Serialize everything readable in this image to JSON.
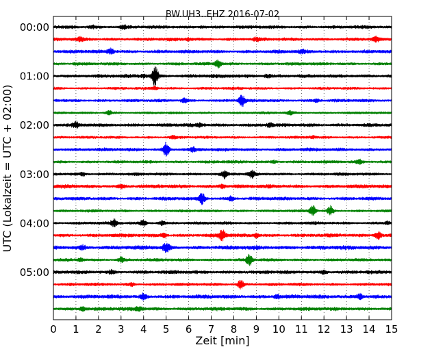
{
  "chart_data": {
    "type": "line",
    "title": "BW.UH3..EHZ 2016-07-02",
    "xlabel": "Zeit  [min]",
    "ylabel": "UTC (Lokalzeit = UTC + 02:00)",
    "xlim": [
      0,
      15
    ],
    "x_ticks": [
      "0",
      "1",
      "2",
      "3",
      "4",
      "5",
      "6",
      "7",
      "8",
      "9",
      "10",
      "11",
      "12",
      "13",
      "14",
      "15"
    ],
    "y_ticks": [
      {
        "label": "00:00",
        "row": 0
      },
      {
        "label": "01:00",
        "row": 4
      },
      {
        "label": "02:00",
        "row": 8
      },
      {
        "label": "03:00",
        "row": 12
      },
      {
        "label": "04:00",
        "row": 16
      },
      {
        "label": "05:00",
        "row": 20
      }
    ],
    "row_minutes": 15,
    "grid": "vertical dotted every minute",
    "color_cycle": [
      "#000000",
      "#ff0000",
      "#0000ff",
      "#008000"
    ],
    "traces": [
      {
        "start": "00:00",
        "color": "#000000",
        "amp": 0.28,
        "events": [
          [
            1.7,
            0.3
          ],
          [
            3.1,
            0.35
          ],
          [
            6.6,
            0.3
          ]
        ]
      },
      {
        "start": "00:15",
        "color": "#ff0000",
        "amp": 0.28,
        "events": [
          [
            1.2,
            0.3
          ],
          [
            6.0,
            0.25
          ],
          [
            9.0,
            0.25
          ],
          [
            14.3,
            0.3
          ]
        ]
      },
      {
        "start": "00:30",
        "color": "#0000ff",
        "amp": 0.3,
        "events": [
          [
            2.55,
            0.6
          ],
          [
            11.0,
            0.25
          ]
        ]
      },
      {
        "start": "00:45",
        "color": "#008000",
        "amp": 0.25,
        "events": [
          [
            7.3,
            0.9
          ],
          [
            1.0,
            0.25
          ]
        ]
      },
      {
        "start": "01:00",
        "color": "#000000",
        "amp": 0.3,
        "events": [
          [
            4.5,
            2.0
          ],
          [
            9.5,
            0.5
          ],
          [
            4.0,
            0.35
          ]
        ]
      },
      {
        "start": "01:15",
        "color": "#ff0000",
        "amp": 0.22,
        "events": [
          [
            4.5,
            0.3
          ]
        ]
      },
      {
        "start": "01:30",
        "color": "#0000ff",
        "amp": 0.25,
        "events": [
          [
            8.35,
            1.0
          ],
          [
            5.8,
            0.45
          ],
          [
            11.7,
            0.35
          ]
        ]
      },
      {
        "start": "01:45",
        "color": "#008000",
        "amp": 0.2,
        "events": [
          [
            2.45,
            0.5
          ],
          [
            10.5,
            0.3
          ]
        ]
      },
      {
        "start": "02:00",
        "color": "#000000",
        "amp": 0.3,
        "events": [
          [
            1.0,
            0.4
          ],
          [
            9.6,
            0.35
          ],
          [
            6.5,
            0.25
          ]
        ]
      },
      {
        "start": "02:15",
        "color": "#ff0000",
        "amp": 0.22,
        "events": [
          [
            5.3,
            0.3
          ],
          [
            11.5,
            0.25
          ]
        ]
      },
      {
        "start": "02:30",
        "color": "#0000ff",
        "amp": 0.28,
        "events": [
          [
            5.0,
            1.4
          ],
          [
            6.2,
            0.3
          ]
        ]
      },
      {
        "start": "02:45",
        "color": "#008000",
        "amp": 0.25,
        "events": [
          [
            13.6,
            0.35
          ],
          [
            9.8,
            0.25
          ]
        ]
      },
      {
        "start": "03:00",
        "color": "#000000",
        "amp": 0.25,
        "events": [
          [
            7.6,
            0.7
          ],
          [
            8.8,
            0.5
          ],
          [
            1.3,
            0.35
          ]
        ]
      },
      {
        "start": "03:15",
        "color": "#ff0000",
        "amp": 0.32,
        "events": [
          [
            7.5,
            0.45
          ],
          [
            3.0,
            0.3
          ]
        ]
      },
      {
        "start": "03:30",
        "color": "#0000ff",
        "amp": 0.28,
        "events": [
          [
            6.6,
            1.0
          ],
          [
            7.9,
            0.45
          ]
        ]
      },
      {
        "start": "03:45",
        "color": "#008000",
        "amp": 0.22,
        "events": [
          [
            11.5,
            1.2
          ],
          [
            12.3,
            0.9
          ]
        ]
      },
      {
        "start": "04:00",
        "color": "#000000",
        "amp": 0.25,
        "events": [
          [
            4.0,
            0.7
          ],
          [
            2.7,
            0.55
          ],
          [
            4.8,
            0.45
          ],
          [
            14.8,
            0.3
          ]
        ]
      },
      {
        "start": "04:15",
        "color": "#ff0000",
        "amp": 0.3,
        "events": [
          [
            7.5,
            1.0
          ],
          [
            14.4,
            1.1
          ],
          [
            4.9,
            0.5
          ],
          [
            9.0,
            0.5
          ]
        ]
      },
      {
        "start": "04:30",
        "color": "#0000ff",
        "amp": 0.35,
        "events": [
          [
            5.0,
            0.9
          ],
          [
            1.3,
            0.4
          ]
        ]
      },
      {
        "start": "04:45",
        "color": "#008000",
        "amp": 0.25,
        "events": [
          [
            8.7,
            1.0
          ],
          [
            3.0,
            0.5
          ],
          [
            1.2,
            0.35
          ]
        ]
      },
      {
        "start": "05:00",
        "color": "#000000",
        "amp": 0.3,
        "events": [
          [
            12.0,
            0.35
          ],
          [
            2.6,
            0.3
          ]
        ]
      },
      {
        "start": "05:15",
        "color": "#ff0000",
        "amp": 0.25,
        "events": [
          [
            8.3,
            0.9
          ],
          [
            3.5,
            0.35
          ]
        ]
      },
      {
        "start": "05:30",
        "color": "#0000ff",
        "amp": 0.33,
        "events": [
          [
            13.6,
            0.8
          ],
          [
            4.0,
            0.45
          ],
          [
            9.9,
            0.45
          ]
        ]
      },
      {
        "start": "05:45",
        "color": "#008000",
        "amp": 0.3,
        "events": [
          [
            1.3,
            0.5
          ],
          [
            3.8,
            0.45
          ]
        ]
      }
    ]
  }
}
